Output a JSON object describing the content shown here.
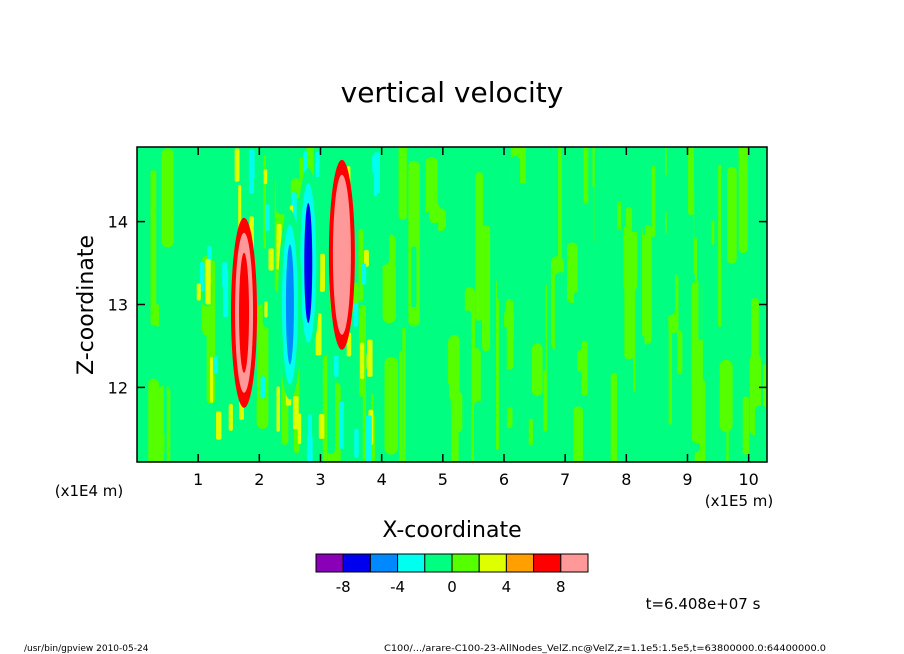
{
  "chart_data": {
    "type": "heatmap",
    "title": "vertical velocity",
    "xlabel": "X-coordinate",
    "ylabel": "Z-coordinate",
    "x_unit": "(x1E5 m)",
    "y_unit": "(x1E4 m)",
    "xlim": [
      0,
      10.3
    ],
    "ylim": [
      11.1,
      14.9
    ],
    "x_ticks": [
      1,
      2,
      3,
      4,
      5,
      6,
      7,
      8,
      9,
      10
    ],
    "y_ticks": [
      12,
      13,
      14
    ],
    "colorbar": {
      "levels": [
        -10,
        -8,
        -6,
        -4,
        -2,
        0,
        2,
        4,
        6,
        8,
        10
      ],
      "colors": [
        "#8a00b8",
        "#0000ee",
        "#0088ff",
        "#00ffee",
        "#00ff80",
        "#55ff00",
        "#ddff00",
        "#ffa000",
        "#ff0000",
        "#ff9898"
      ],
      "tick_labels": [
        "-8",
        "-4",
        "0",
        "4",
        "8"
      ],
      "tick_values": [
        -8,
        -4,
        0,
        4,
        8
      ]
    },
    "grid": false,
    "features": [
      {
        "x": 3.35,
        "z": 13.6,
        "value": 8
      },
      {
        "x": 2.8,
        "z": 13.5,
        "value": -8
      },
      {
        "x": 2.5,
        "z": 13.0,
        "value": -6
      },
      {
        "x": 1.75,
        "z": 12.9,
        "value": 6
      }
    ]
  },
  "time_label": "t=6.408e+07 s",
  "footer": {
    "left": "/usr/bin/gpview  2010-05-24",
    "right": "C100/.../arare-C100-23-AllNodes_VelZ.nc@VelZ,z=1.1e5:1.5e5,t=63800000.0:64400000.0"
  }
}
